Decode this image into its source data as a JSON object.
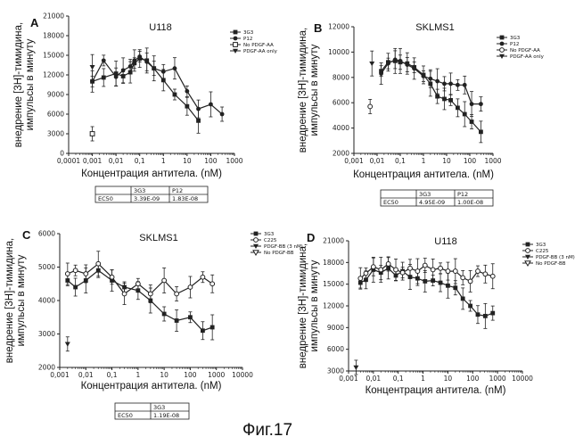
{
  "figure_caption": "Фиг.17",
  "chart_data": [
    {
      "type": "line",
      "panel_label": "A",
      "title": "U118",
      "xlabel": "Концентрация антитела. (nM)",
      "ylabel": [
        "внедрение [3Н]-тимидина,",
        "импульсы в минуту"
      ],
      "xscale": "log",
      "xlim": [
        0.0001,
        1000
      ],
      "xticks": [
        "0,0001",
        "0,001",
        "0,01",
        "0,1",
        "1",
        "10",
        "100",
        "1000"
      ],
      "xtick_values": [
        0.0001,
        0.001,
        0.01,
        0.1,
        1,
        10,
        100,
        1000
      ],
      "ylim": [
        0,
        21000
      ],
      "yticks": [
        0,
        3000,
        6000,
        9000,
        12000,
        15000,
        18000,
        21000
      ],
      "legend_position": "top-right",
      "series": [
        {
          "name": "3G3",
          "marker": "square-filled",
          "color": "#222222",
          "x": [
            0.001,
            0.003,
            0.01,
            0.02,
            0.04,
            0.06,
            0.1,
            0.2,
            0.4,
            1,
            3,
            10,
            30
          ],
          "y": [
            11000,
            11600,
            12200,
            11800,
            12400,
            13800,
            14500,
            14200,
            13000,
            11200,
            9000,
            7200,
            5000
          ]
        },
        {
          "name": "P12",
          "marker": "circle-filled",
          "color": "#222222",
          "x": [
            0.001,
            0.003,
            0.01,
            0.02,
            0.04,
            0.06,
            0.1,
            0.2,
            0.4,
            1,
            3,
            10,
            30,
            100,
            300
          ],
          "y": [
            11000,
            14200,
            11700,
            12700,
            13300,
            14200,
            14800,
            14000,
            13000,
            12500,
            13000,
            9500,
            6800,
            7500,
            6000
          ]
        },
        {
          "name": "No PDGF-AA",
          "marker": "square-open",
          "color": "#222222",
          "x": [
            0.001
          ],
          "y": [
            3000
          ]
        },
        {
          "name": "PDGF-AA only",
          "marker": "triangle-down",
          "color": "#222222",
          "x": [
            0.001
          ],
          "y": [
            13200
          ]
        }
      ],
      "table": {
        "headers": [
          "",
          "3G3",
          "P12"
        ],
        "rows": [
          [
            "EC50",
            "3.39E-09",
            "1.83E-08"
          ]
        ]
      }
    },
    {
      "type": "line",
      "panel_label": "B",
      "title": "SKLMS1",
      "xlabel": "Концентрация антитела. (nM)",
      "ylabel": [
        "внедрение [3Н]-тимидина,",
        "импульсы в минуту"
      ],
      "xscale": "log",
      "xlim": [
        0.001,
        1000
      ],
      "xticks": [
        "0,001",
        "0,01",
        "0,1",
        "1",
        "10",
        "100",
        "1000"
      ],
      "xtick_values": [
        0.001,
        0.01,
        0.1,
        1,
        10,
        100,
        1000
      ],
      "ylim": [
        2000,
        12000
      ],
      "yticks": [
        2000,
        4000,
        6000,
        8000,
        10000,
        12000
      ],
      "legend_position": "top-right",
      "series": [
        {
          "name": "3G3",
          "marker": "square-filled",
          "color": "#222222",
          "x": [
            0.015,
            0.03,
            0.06,
            0.1,
            0.2,
            0.4,
            1,
            2,
            4,
            8,
            15,
            30,
            60,
            120,
            300
          ],
          "y": [
            8500,
            9200,
            9300,
            9200,
            9100,
            8800,
            8200,
            7500,
            6500,
            6300,
            6200,
            5600,
            5100,
            4500,
            3700
          ]
        },
        {
          "name": "P12",
          "marker": "circle-filled",
          "color": "#222222",
          "x": [
            0.015,
            0.03,
            0.06,
            0.1,
            0.2,
            0.4,
            1,
            2,
            4,
            8,
            15,
            30,
            60,
            120,
            300
          ],
          "y": [
            8300,
            9100,
            9400,
            9300,
            9000,
            8700,
            8100,
            7900,
            7700,
            7500,
            7500,
            7400,
            7400,
            5900,
            5900
          ]
        },
        {
          "name": "No PDGF-AA",
          "marker": "circle-open",
          "color": "#222222",
          "x": [
            0.005
          ],
          "y": [
            5700
          ]
        },
        {
          "name": "PDGF-AA only",
          "marker": "triangle-down",
          "color": "#222222",
          "x": [
            0.006
          ],
          "y": [
            9100
          ]
        }
      ],
      "table": {
        "headers": [
          "",
          "3G3",
          "P12"
        ],
        "rows": [
          [
            "EC50",
            "4.95E-09",
            "1.00E-08"
          ]
        ]
      }
    },
    {
      "type": "line",
      "panel_label": "C",
      "title": "SKLMS1",
      "xlabel": "Концентрация антитела. (nM)",
      "ylabel": [
        "внедрение [3Н]-тимидина,",
        "импульсы в минуту"
      ],
      "xscale": "log",
      "xlim": [
        0.001,
        10000
      ],
      "xticks": [
        "0,001",
        "0,01",
        "0,1",
        "1",
        "10",
        "100",
        "1000",
        "10000"
      ],
      "xtick_values": [
        0.001,
        0.01,
        0.1,
        1,
        10,
        100,
        1000,
        10000
      ],
      "ylim": [
        2000,
        6000
      ],
      "yticks": [
        2000,
        3000,
        4000,
        5000,
        6000
      ],
      "legend_position": "top-right",
      "series": [
        {
          "name": "3G3",
          "marker": "square-filled",
          "color": "#222222",
          "x": [
            0.002,
            0.004,
            0.01,
            0.03,
            0.1,
            0.3,
            1,
            3,
            10,
            30,
            100,
            300,
            700
          ],
          "y": [
            4600,
            4400,
            4600,
            4900,
            4600,
            4400,
            4300,
            4000,
            3600,
            3400,
            3500,
            3100,
            3200
          ]
        },
        {
          "name": "C225",
          "marker": "circle-open",
          "color": "#222222",
          "x": [
            0.002,
            0.004,
            0.01,
            0.03,
            0.1,
            0.3,
            1,
            3,
            10,
            30,
            100,
            300,
            700
          ],
          "y": [
            4800,
            4900,
            4800,
            5100,
            4700,
            4200,
            4500,
            4200,
            4600,
            4200,
            4400,
            4700,
            4500
          ]
        },
        {
          "name": "PDGF-BB (3 nM)",
          "marker": "triangle-down",
          "color": "#222222",
          "x": [
            0.002
          ],
          "y": [
            2700
          ]
        },
        {
          "name": "No PDGF-BB",
          "marker": "triangle-down-open",
          "color": "#222222",
          "x": [],
          "y": []
        }
      ],
      "table": {
        "headers": [
          "",
          "3G3"
        ],
        "rows": [
          [
            "EC50",
            "1.19E-08"
          ]
        ]
      }
    },
    {
      "type": "line",
      "panel_label": "D",
      "title": "U118",
      "xlabel": "Концентрация антитела. (nM)",
      "ylabel": [
        "внедрение [3Н]-тимидина,",
        "импульсы в минуту"
      ],
      "xscale": "log",
      "xlim": [
        0.001,
        10000
      ],
      "xticks": [
        "0,001",
        "0,01",
        "0,1",
        "1",
        "10",
        "100",
        "1000",
        "10000"
      ],
      "xtick_values": [
        0.001,
        0.01,
        0.1,
        1,
        10,
        100,
        1000,
        10000
      ],
      "ylim": [
        3000,
        21000
      ],
      "yticks": [
        3000,
        6000,
        9000,
        12000,
        15000,
        18000,
        21000
      ],
      "legend_position": "top-right",
      "series": [
        {
          "name": "3G3",
          "marker": "square-filled",
          "color": "#222222",
          "x": [
            0.003,
            0.005,
            0.01,
            0.02,
            0.04,
            0.08,
            0.15,
            0.3,
            0.6,
            1.2,
            2.5,
            5,
            10,
            20,
            40,
            80,
            160,
            320,
            640
          ],
          "y": [
            15200,
            15600,
            17000,
            16600,
            17200,
            16200,
            16800,
            16000,
            15800,
            15400,
            15500,
            15200,
            14800,
            14500,
            13000,
            12000,
            10800,
            10600,
            11000
          ]
        },
        {
          "name": "C225",
          "marker": "circle-open",
          "color": "#222222",
          "x": [
            0.003,
            0.005,
            0.01,
            0.02,
            0.04,
            0.08,
            0.15,
            0.3,
            0.6,
            1.2,
            2.5,
            5,
            10,
            20,
            40,
            80,
            160,
            320,
            640
          ],
          "y": [
            15800,
            16500,
            17400,
            17000,
            17800,
            17000,
            16600,
            17200,
            16800,
            17600,
            17000,
            17200,
            16800,
            16800,
            15900,
            15400,
            16800,
            16400,
            16100
          ]
        },
        {
          "name": "PDGF-BB (3 nM)",
          "marker": "triangle-down",
          "color": "#222222",
          "x": [
            0.002
          ],
          "y": [
            3500
          ]
        },
        {
          "name": "No PDGF-BB",
          "marker": "triangle-down-open",
          "color": "#222222",
          "x": [],
          "y": []
        }
      ]
    }
  ]
}
